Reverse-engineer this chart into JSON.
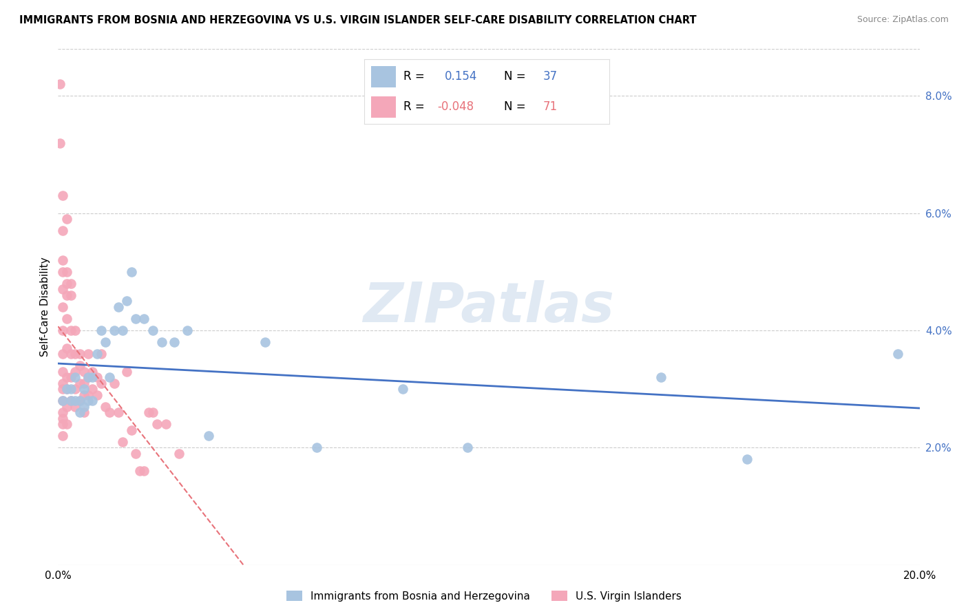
{
  "title": "IMMIGRANTS FROM BOSNIA AND HERZEGOVINA VS U.S. VIRGIN ISLANDER SELF-CARE DISABILITY CORRELATION CHART",
  "source": "Source: ZipAtlas.com",
  "ylabel": "Self-Care Disability",
  "right_yticks": [
    "2.0%",
    "4.0%",
    "6.0%",
    "8.0%"
  ],
  "right_ytick_vals": [
    0.02,
    0.04,
    0.06,
    0.08
  ],
  "xlim": [
    0.0,
    0.2
  ],
  "ylim": [
    0.0,
    0.088
  ],
  "legend_blue_R": "0.154",
  "legend_blue_N": "37",
  "legend_pink_R": "-0.048",
  "legend_pink_N": "71",
  "blue_color": "#a8c4e0",
  "pink_color": "#f4a7b9",
  "blue_line_color": "#4472c4",
  "pink_line_color": "#e8727a",
  "watermark": "ZIPatlas",
  "blue_scatter_x": [
    0.001,
    0.002,
    0.003,
    0.003,
    0.004,
    0.004,
    0.005,
    0.005,
    0.006,
    0.006,
    0.007,
    0.007,
    0.008,
    0.008,
    0.009,
    0.01,
    0.011,
    0.012,
    0.013,
    0.014,
    0.015,
    0.016,
    0.017,
    0.018,
    0.02,
    0.022,
    0.024,
    0.027,
    0.03,
    0.035,
    0.048,
    0.06,
    0.08,
    0.095,
    0.14,
    0.16,
    0.195
  ],
  "blue_scatter_y": [
    0.028,
    0.03,
    0.03,
    0.028,
    0.028,
    0.032,
    0.028,
    0.026,
    0.03,
    0.027,
    0.032,
    0.028,
    0.032,
    0.028,
    0.036,
    0.04,
    0.038,
    0.032,
    0.04,
    0.044,
    0.04,
    0.045,
    0.05,
    0.042,
    0.042,
    0.04,
    0.038,
    0.038,
    0.04,
    0.022,
    0.038,
    0.02,
    0.03,
    0.02,
    0.032,
    0.018,
    0.036
  ],
  "pink_scatter_x": [
    0.0005,
    0.0005,
    0.001,
    0.001,
    0.001,
    0.001,
    0.001,
    0.001,
    0.001,
    0.001,
    0.001,
    0.001,
    0.001,
    0.001,
    0.001,
    0.001,
    0.001,
    0.001,
    0.002,
    0.002,
    0.002,
    0.002,
    0.002,
    0.002,
    0.002,
    0.002,
    0.002,
    0.002,
    0.003,
    0.003,
    0.003,
    0.003,
    0.003,
    0.003,
    0.004,
    0.004,
    0.004,
    0.004,
    0.004,
    0.005,
    0.005,
    0.005,
    0.005,
    0.006,
    0.006,
    0.006,
    0.006,
    0.007,
    0.007,
    0.007,
    0.008,
    0.008,
    0.009,
    0.009,
    0.01,
    0.01,
    0.011,
    0.012,
    0.013,
    0.014,
    0.015,
    0.016,
    0.017,
    0.018,
    0.019,
    0.02,
    0.021,
    0.022,
    0.023,
    0.025,
    0.028
  ],
  "pink_scatter_y": [
    0.082,
    0.072,
    0.063,
    0.057,
    0.052,
    0.05,
    0.047,
    0.044,
    0.04,
    0.036,
    0.033,
    0.031,
    0.03,
    0.028,
    0.026,
    0.025,
    0.024,
    0.022,
    0.059,
    0.05,
    0.048,
    0.046,
    0.042,
    0.037,
    0.032,
    0.03,
    0.027,
    0.024,
    0.048,
    0.046,
    0.04,
    0.036,
    0.032,
    0.028,
    0.04,
    0.036,
    0.033,
    0.03,
    0.027,
    0.036,
    0.034,
    0.031,
    0.028,
    0.033,
    0.031,
    0.029,
    0.026,
    0.036,
    0.032,
    0.029,
    0.033,
    0.03,
    0.032,
    0.029,
    0.036,
    0.031,
    0.027,
    0.026,
    0.031,
    0.026,
    0.021,
    0.033,
    0.023,
    0.019,
    0.016,
    0.016,
    0.026,
    0.026,
    0.024,
    0.024,
    0.019
  ]
}
